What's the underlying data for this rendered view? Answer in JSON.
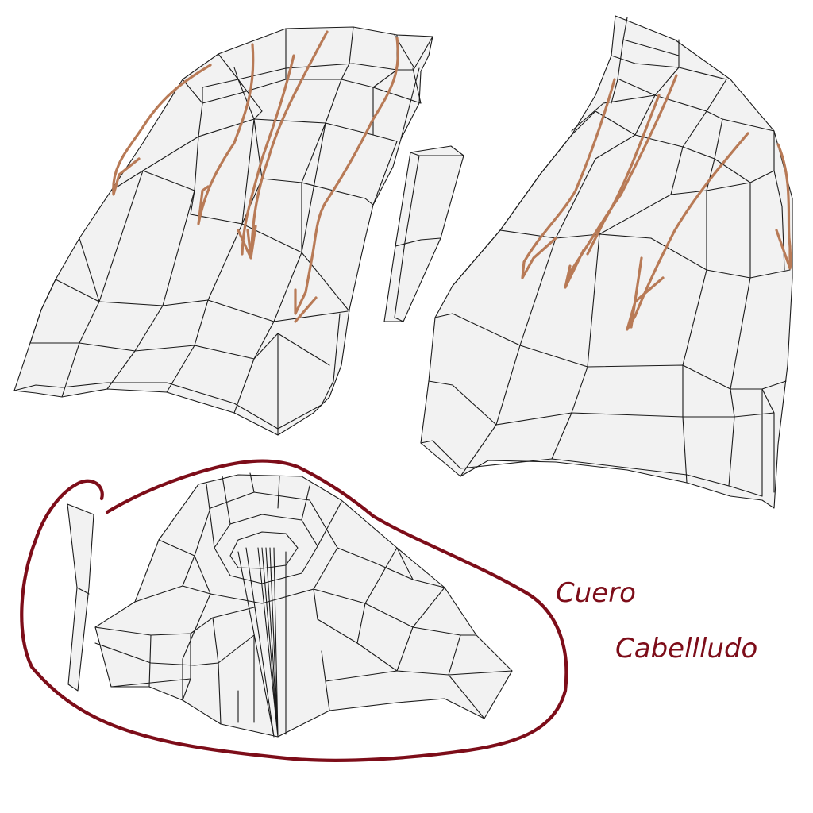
{
  "annotations": {
    "line1": "Cuero",
    "line2": "Cabellludo",
    "hair_direction_color": "#b87a56",
    "outline_color": "#7d0d19"
  },
  "mesh": {
    "fill_color": "#f2f2f2",
    "edge_color": "#1a1a1a"
  },
  "icons": {
    "direction_arrows": "arrow-down-icon"
  }
}
